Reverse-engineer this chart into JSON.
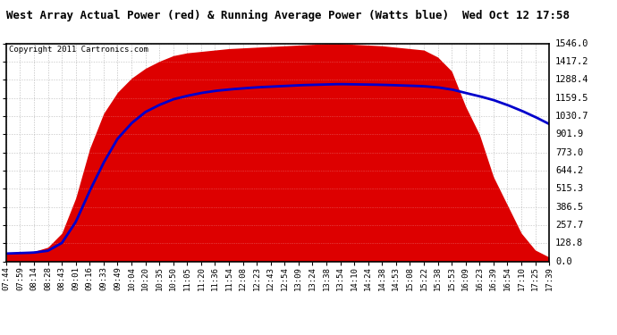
{
  "title": "West Array Actual Power (red) & Running Average Power (Watts blue)  Wed Oct 12 17:58",
  "copyright": "Copyright 2011 Cartronics.com",
  "yticks": [
    0.0,
    128.8,
    257.7,
    386.5,
    515.3,
    644.2,
    773.0,
    901.9,
    1030.7,
    1159.5,
    1288.4,
    1417.2,
    1546.0
  ],
  "ymax": 1546.0,
  "ymin": 0.0,
  "bg_color": "#ffffff",
  "plot_bg": "#ffffff",
  "grid_color": "#aaaaaa",
  "red_color": "#dd0000",
  "blue_color": "#0000cc",
  "xtick_labels": [
    "07:44",
    "07:59",
    "08:14",
    "08:28",
    "08:43",
    "09:01",
    "09:16",
    "09:33",
    "09:49",
    "10:04",
    "10:20",
    "10:35",
    "10:50",
    "11:05",
    "11:20",
    "11:36",
    "11:54",
    "12:08",
    "12:23",
    "12:43",
    "12:54",
    "13:09",
    "13:24",
    "13:38",
    "13:54",
    "14:10",
    "14:24",
    "14:38",
    "14:53",
    "15:08",
    "15:22",
    "15:38",
    "15:53",
    "16:09",
    "16:23",
    "16:39",
    "16:54",
    "17:10",
    "17:25",
    "17:39"
  ],
  "actual_power": [
    60,
    65,
    70,
    100,
    200,
    450,
    800,
    1050,
    1200,
    1300,
    1370,
    1420,
    1460,
    1480,
    1490,
    1500,
    1510,
    1515,
    1520,
    1525,
    1530,
    1535,
    1540,
    1545,
    1546,
    1540,
    1535,
    1530,
    1520,
    1510,
    1500,
    1450,
    1350,
    1100,
    900,
    600,
    400,
    200,
    80,
    30
  ],
  "running_avg": [
    55,
    58,
    62,
    75,
    130,
    280,
    500,
    700,
    870,
    980,
    1060,
    1110,
    1150,
    1175,
    1195,
    1210,
    1220,
    1228,
    1235,
    1240,
    1245,
    1250,
    1253,
    1256,
    1258,
    1256,
    1255,
    1253,
    1250,
    1247,
    1243,
    1235,
    1220,
    1195,
    1172,
    1145,
    1110,
    1070,
    1025,
    975
  ],
  "title_fontsize": 9,
  "copyright_fontsize": 6.5,
  "tick_fontsize": 6.5,
  "ytick_fontsize": 7.5
}
